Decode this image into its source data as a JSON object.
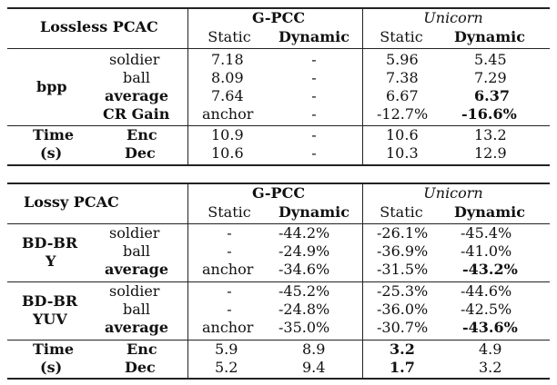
{
  "lossless": {
    "title": "Lossless PCAC",
    "gpcc": "G-PCC",
    "unicorn": "Unicorn",
    "static": "Static",
    "dynamic": "Dynamic",
    "bpp": "bpp",
    "time": "Time",
    "s": "(s)",
    "rows": [
      {
        "sub": "soldier",
        "g_s": "7.18",
        "g_d": "-",
        "u_s": "5.96",
        "u_d": "5.45"
      },
      {
        "sub": "ball",
        "g_s": "8.09",
        "g_d": "-",
        "u_s": "7.38",
        "u_d": "7.29"
      },
      {
        "sub": "average",
        "g_s": "7.64",
        "g_d": "-",
        "u_s": "6.67",
        "u_d": "6.37"
      },
      {
        "sub": "CR Gain",
        "g_s": "anchor",
        "g_d": "-",
        "u_s": "-12.7%",
        "u_d": "-16.6%"
      },
      {
        "sub": "Enc",
        "g_s": "10.9",
        "g_d": "-",
        "u_s": "10.6",
        "u_d": "13.2"
      },
      {
        "sub": "Dec",
        "g_s": "10.6",
        "g_d": "-",
        "u_s": "10.3",
        "u_d": "12.9"
      }
    ]
  },
  "lossy": {
    "title": "Lossy PCAC",
    "gpcc": "G-PCC",
    "unicorn": "Unicorn",
    "static": "Static",
    "dynamic": "Dynamic",
    "bdbr": "BD-BR",
    "y": "Y",
    "yuv": "YUV",
    "time": "Time",
    "s": "(s)",
    "rows": [
      {
        "sub": "soldier",
        "g_s": "-",
        "g_d": "-44.2%",
        "u_s": "-26.1%",
        "u_d": "-45.4%"
      },
      {
        "sub": "ball",
        "g_s": "-",
        "g_d": "-24.9%",
        "u_s": "-36.9%",
        "u_d": "-41.0%"
      },
      {
        "sub": "average",
        "g_s": "anchor",
        "g_d": "-34.6%",
        "u_s": "-31.5%",
        "u_d": "-43.2%"
      },
      {
        "sub": "soldier",
        "g_s": "-",
        "g_d": "-45.2%",
        "u_s": "-25.3%",
        "u_d": "-44.6%"
      },
      {
        "sub": "ball",
        "g_s": "-",
        "g_d": "-24.8%",
        "u_s": "-36.0%",
        "u_d": "-42.5%"
      },
      {
        "sub": "average",
        "g_s": "anchor",
        "g_d": "-35.0%",
        "u_s": "-30.7%",
        "u_d": "-43.6%"
      },
      {
        "sub": "Enc",
        "g_s": "5.9",
        "g_d": "8.9",
        "u_s": "3.2",
        "u_d": "4.9"
      },
      {
        "sub": "Dec",
        "g_s": "5.2",
        "g_d": "9.4",
        "u_s": "1.7",
        "u_d": "3.2"
      }
    ]
  }
}
